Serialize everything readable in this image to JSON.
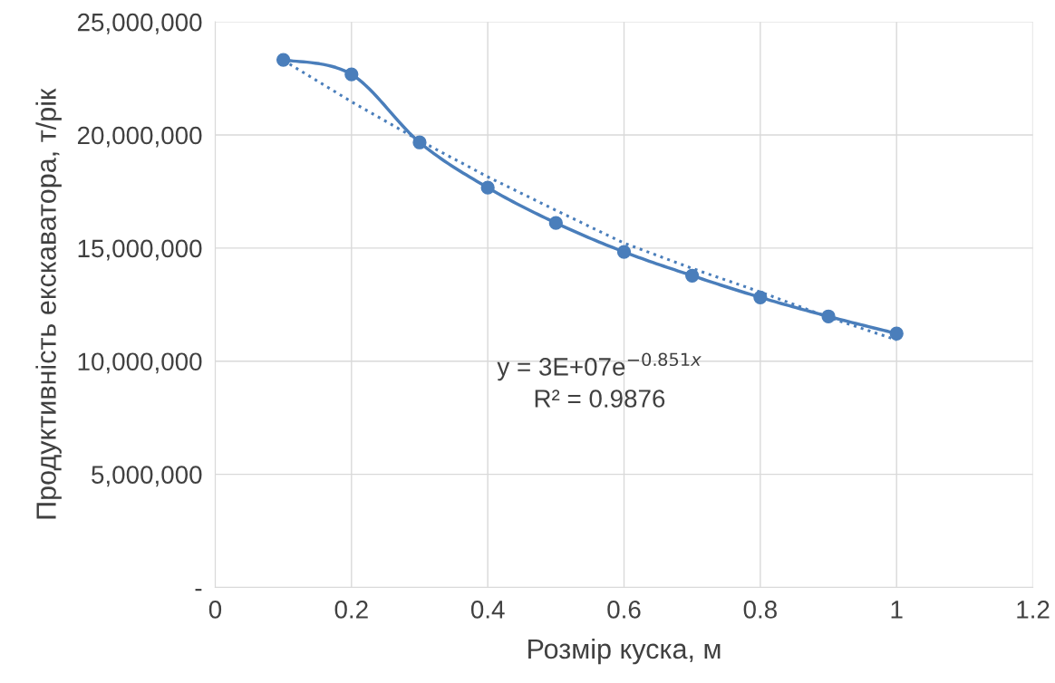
{
  "chart_data": {
    "type": "line",
    "xlabel": "Розмір куска, м",
    "ylabel": "Продуктивність екскаватора, т/рік",
    "x": [
      0.1,
      0.2,
      0.3,
      0.4,
      0.5,
      0.6,
      0.7,
      0.8,
      0.9,
      1.0
    ],
    "series": [
      {
        "color": "#4a7ebb",
        "values": [
          23320000,
          22680000,
          19670000,
          17670000,
          16110000,
          14830000,
          13780000,
          12820000,
          11980000,
          11220000
        ],
        "marker": "circle",
        "line_style": "solid"
      },
      {
        "type": "line",
        "color": "#4a7ebb",
        "x": [
          0.1,
          0.2,
          0.3,
          0.4,
          0.5,
          0.6,
          0.7,
          0.8,
          0.9,
          1.0
        ],
        "values": [
          23300000,
          21470000,
          19750000,
          18150000,
          16670000,
          15220000,
          14100000,
          13060000,
          11940000,
          10940000
        ],
        "marker": "none",
        "line_style": "dotted"
      }
    ],
    "xlim": [
      0,
      1.2
    ],
    "xticks": [
      0,
      0.2,
      0.4,
      0.6,
      0.8,
      1,
      1.2
    ],
    "ylim": [
      0,
      25000000
    ],
    "yticks": [
      {
        "value": 0,
        "label": "-"
      },
      {
        "value": 5000000,
        "label": "5,000,000"
      },
      {
        "value": 10000000,
        "label": "10,000,000"
      },
      {
        "value": 15000000,
        "label": "15,000,000"
      },
      {
        "value": 20000000,
        "label": "20,000,000"
      },
      {
        "value": 25000000,
        "label": "25,000,000"
      }
    ],
    "grid": true,
    "annotations": [
      "y = 3E+07e$^{−0.851x}$",
      "R² = 0.9876"
    ]
  }
}
